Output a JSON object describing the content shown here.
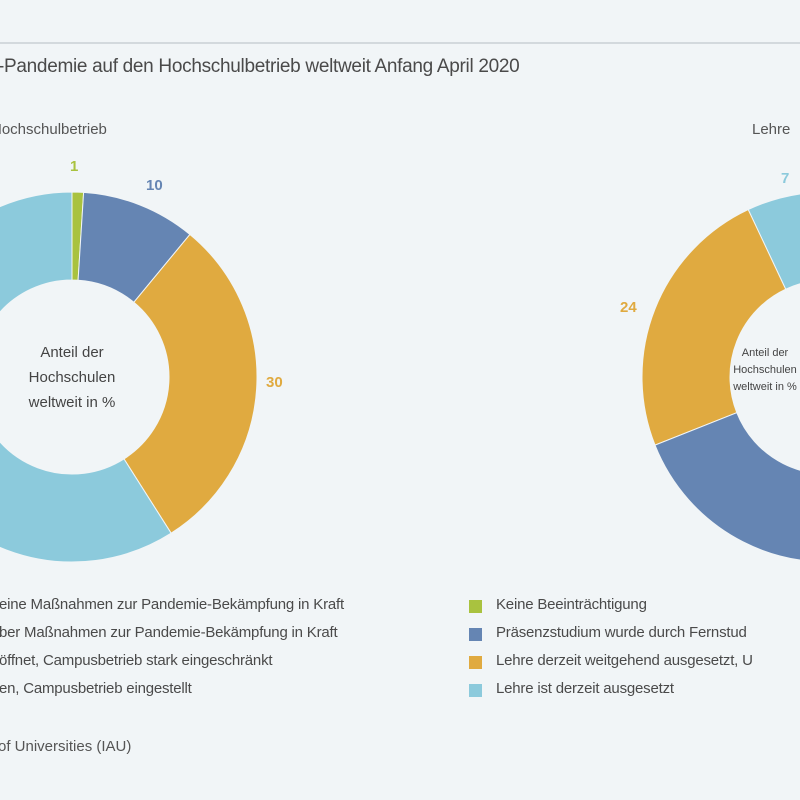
{
  "title": "-Pandemie auf den Hochschulbetrieb weltweit Anfang April 2020",
  "source": "of Universities (IAU)",
  "colors": {
    "green": "#a9c23f",
    "blue": "#6585b3",
    "orange": "#e0aa40",
    "lightblue": "#8ccadc"
  },
  "chart_data": [
    {
      "type": "pie",
      "subtitle": "Hochschulbetrieb",
      "center_label": [
        "Anteil der",
        "Hochschulen",
        "weltweit in %"
      ],
      "slices": [
        {
          "value": 1,
          "color": "#a9c23f",
          "label": "1"
        },
        {
          "value": 10,
          "color": "#6585b3",
          "label": "10"
        },
        {
          "value": 30,
          "color": "#e0aa40",
          "label": "30"
        }
      ],
      "legend": [
        "eine Maßnahmen zur Pandemie-Bekämpfung in Kraft",
        "ber Maßnahmen zur Pandemie-Bekämpfung in Kraft",
        "öffnet, Campusbetrieb stark eingeschränkt",
        "en, Campusbetrieb eingestellt"
      ]
    },
    {
      "type": "pie",
      "subtitle": "Lehre",
      "center_label": [
        "Anteil der",
        "Hochschulen",
        "weltweit in %"
      ],
      "slices": [
        {
          "value": 24,
          "color": "#e0aa40",
          "label": "24"
        },
        {
          "value": 7,
          "color": "#8ccadc",
          "label": "7"
        }
      ],
      "legend": [
        {
          "label": "Keine Beeinträchtigung",
          "color": "#a9c23f"
        },
        {
          "label": "Präsenzstudium wurde durch Fernstud",
          "color": "#6585b3"
        },
        {
          "label": "Lehre derzeit weitgehend ausgesetzt, U",
          "color": "#e0aa40"
        },
        {
          "label": "Lehre ist derzeit ausgesetzt",
          "color": "#8ccadc"
        }
      ]
    }
  ]
}
